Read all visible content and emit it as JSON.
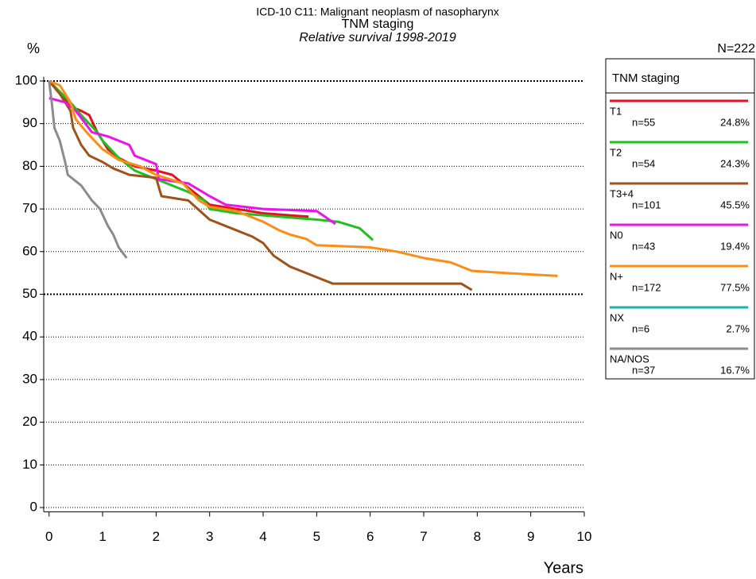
{
  "chart_data": {
    "type": "line",
    "title": "ICD-10 C11: Malignant neoplasm of nasopharynx",
    "subtitle": "TNM staging",
    "caption": "Relative survival 1998-2019",
    "y_label": "%",
    "x_label": "Years",
    "total": "N=222",
    "legend_title": "TNM staging",
    "xlim": [
      -0.1,
      10
    ],
    "ylim": [
      -1,
      101
    ],
    "xticks": [
      0,
      1,
      2,
      3,
      4,
      5,
      6,
      7,
      8,
      9,
      10
    ],
    "yticks": [
      0,
      10,
      20,
      30,
      40,
      50,
      60,
      70,
      80,
      90,
      100
    ],
    "grid": true,
    "bold_grid": [
      50,
      100
    ],
    "legend": "right",
    "series": [
      {
        "name": "T1",
        "n": "n=55",
        "share": "24.8%",
        "color": "#e8111b",
        "x": [
          0,
          0.2,
          0.4,
          0.6,
          0.75,
          0.9,
          1.1,
          1.3,
          1.6,
          2.0,
          2.3,
          2.6,
          3.0,
          3.5,
          4.0,
          4.5,
          4.85
        ],
        "values": [
          100,
          97,
          94,
          93,
          92,
          88,
          84,
          82,
          80,
          79,
          78,
          75,
          71,
          70,
          69,
          68.5,
          68.2
        ]
      },
      {
        "name": "T2",
        "n": "n=54",
        "share": "24.3%",
        "color": "#1ec21e",
        "x": [
          0,
          0.4,
          0.6,
          0.9,
          1.0,
          1.3,
          1.6,
          2.0,
          2.6,
          2.9,
          3.0,
          3.5,
          4.0,
          5.0,
          5.4,
          5.8,
          6.05
        ],
        "values": [
          100,
          95,
          92,
          88,
          86,
          82,
          79,
          77,
          74,
          72,
          70,
          69,
          68.5,
          67.5,
          67,
          65.5,
          62.7
        ]
      },
      {
        "name": "T3+4",
        "n": "n=101",
        "share": "45.5%",
        "color": "#a0521b",
        "x": [
          0,
          0.2,
          0.4,
          0.45,
          0.6,
          0.75,
          1.0,
          1.2,
          1.5,
          2.0,
          2.1,
          2.6,
          3.0,
          3.5,
          3.8,
          4.0,
          4.2,
          4.5,
          4.9,
          5.3,
          6.0,
          7.7,
          7.9
        ],
        "values": [
          100,
          97,
          93,
          89,
          85,
          82.5,
          81,
          79.5,
          78,
          77.3,
          73,
          72,
          67.5,
          65,
          63.5,
          62,
          59,
          56.5,
          54.5,
          52.5,
          52.5,
          52.5,
          51
        ]
      },
      {
        "name": "N0",
        "n": "n=43",
        "share": "19.4%",
        "color": "#ee11ee",
        "x": [
          0,
          0.3,
          0.5,
          0.8,
          1.1,
          1.5,
          1.6,
          2.0,
          2.05,
          2.6,
          3.0,
          3.3,
          4.0,
          5.0,
          5.35
        ],
        "values": [
          96,
          95,
          93,
          88,
          87,
          85,
          82.5,
          80.5,
          77,
          76,
          73,
          71,
          70,
          69.5,
          66.5
        ]
      },
      {
        "name": "N+",
        "n": "n=172",
        "share": "77.5%",
        "color": "#ff8c14",
        "x": [
          0,
          0.2,
          0.4,
          0.5,
          0.7,
          1.0,
          1.3,
          1.7,
          2.0,
          2.5,
          2.8,
          3.0,
          3.5,
          3.7,
          4.0,
          4.3,
          4.5,
          4.8,
          5.0,
          6.0,
          6.5,
          7.0,
          7.5,
          7.9,
          8.5,
          9.5
        ],
        "values": [
          100,
          99,
          95,
          91,
          88,
          84,
          81.5,
          80,
          78,
          76,
          72,
          70.5,
          69.5,
          68.5,
          67,
          65,
          64,
          63,
          61.5,
          61,
          60,
          58.5,
          57.5,
          55.5,
          55,
          54.3
        ]
      },
      {
        "name": "NX",
        "n": "n=6",
        "share": "2.7%",
        "color": "#1ab3b3"
      },
      {
        "name": "NA/NOS",
        "n": "n=37",
        "share": "16.7%",
        "color": "#8c8c8c",
        "x": [
          0,
          0.05,
          0.1,
          0.2,
          0.3,
          0.35,
          0.6,
          0.8,
          0.95,
          1.1,
          1.2,
          1.3,
          1.45
        ],
        "values": [
          100,
          95,
          89,
          86,
          81,
          78,
          75.5,
          72,
          70,
          66,
          64,
          61,
          58.5
        ]
      }
    ]
  }
}
